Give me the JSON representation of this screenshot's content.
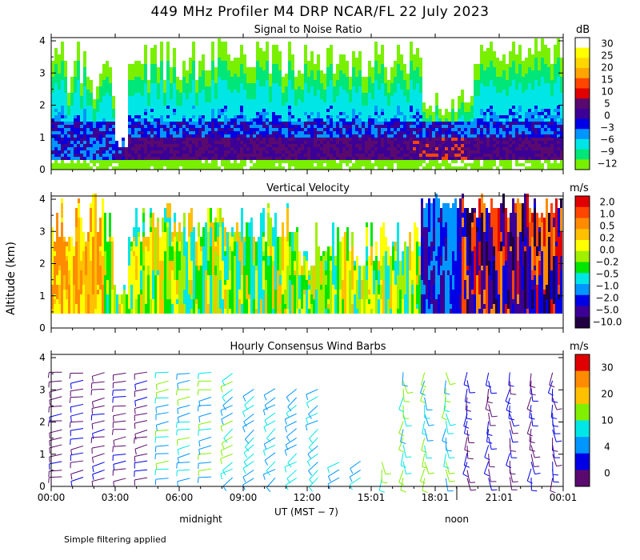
{
  "title": "449 MHz Profiler M4 DRP NCAR/FL 22 July 2023",
  "panels": {
    "snr": {
      "title": "Signal to Noise Ratio",
      "unit": "dB"
    },
    "vv": {
      "title": "Vertical Velocity",
      "unit": "m/s"
    },
    "wind": {
      "title": "Hourly Consensus Wind Barbs",
      "unit": "m/s"
    }
  },
  "y_axis_label": "Altitude (km)",
  "x_axis_label": "UT  (MST − 7)",
  "day_labels": {
    "midnight": "midnight",
    "noon": "noon"
  },
  "footnote": "Simple filtering applied",
  "colors": {
    "background": "#ffffff",
    "axis": "#000000"
  },
  "chart_data": [
    {
      "type": "heatmap",
      "name": "snr",
      "title": "Signal to Noise Ratio",
      "xlabel": "UT  (MST − 7)",
      "ylabel": "Altitude (km)",
      "x_ticks": [
        "00:00",
        "03:00",
        "06:00",
        "09:00",
        "12:00",
        "15:01",
        "18:01",
        "21:01",
        "00:01"
      ],
      "y_ticks": [
        0,
        1,
        2,
        3,
        4
      ],
      "ylim": [
        0,
        4.1
      ],
      "colorbar": {
        "unit": "dB",
        "labels": [
          "30",
          "25",
          "20",
          "15",
          "10",
          "5",
          "0",
          "−3",
          "−6",
          "−9",
          "−12"
        ],
        "colors": [
          "#ffffff",
          "#ffff00",
          "#ffd700",
          "#ffa500",
          "#ff4500",
          "#e00000",
          "#5a0a6e",
          "#3c0096",
          "#0000e6",
          "#0096ff",
          "#00e6e6",
          "#00e678",
          "#78f000"
        ]
      }
    },
    {
      "type": "heatmap",
      "name": "vertical-velocity",
      "title": "Vertical Velocity",
      "xlabel": "UT  (MST − 7)",
      "ylabel": "Altitude (km)",
      "x_ticks": [
        "00:00",
        "03:00",
        "06:00",
        "09:00",
        "12:00",
        "15:01",
        "18:01",
        "21:01",
        "00:01"
      ],
      "y_ticks": [
        0,
        1,
        2,
        3,
        4
      ],
      "ylim": [
        0,
        4.1
      ],
      "colorbar": {
        "unit": "m/s",
        "labels": [
          "2.0",
          "1.0",
          "0.5",
          "0.2",
          "0.0",
          "−0.2",
          "−0.5",
          "−1.0",
          "−2.0",
          "−5.0",
          "−10.0"
        ],
        "colors": [
          "#e00000",
          "#ff4500",
          "#ff8c00",
          "#ffc000",
          "#ffff00",
          "#a0f000",
          "#00e600",
          "#00e6e6",
          "#0096ff",
          "#0000e6",
          "#3c0096",
          "#200040"
        ]
      }
    },
    {
      "type": "barbs",
      "name": "wind-barbs",
      "title": "Hourly Consensus Wind Barbs",
      "xlabel": "UT  (MST − 7)",
      "ylabel": "Altitude (km)",
      "x_ticks": [
        "00:00",
        "03:00",
        "06:00",
        "09:00",
        "12:00",
        "15:01",
        "18:01",
        "21:01",
        "00:01"
      ],
      "y_ticks": [
        0,
        1,
        2,
        3,
        4
      ],
      "ylim": [
        0,
        4.1
      ],
      "colorbar": {
        "unit": "m/s",
        "labels": [
          "30",
          "20",
          "10",
          "4",
          "0"
        ],
        "colors": [
          "#e00000",
          "#ff8c00",
          "#ffc000",
          "#80f000",
          "#00e6e6",
          "#0096ff",
          "#0000e6",
          "#5a0a6e"
        ]
      }
    }
  ]
}
